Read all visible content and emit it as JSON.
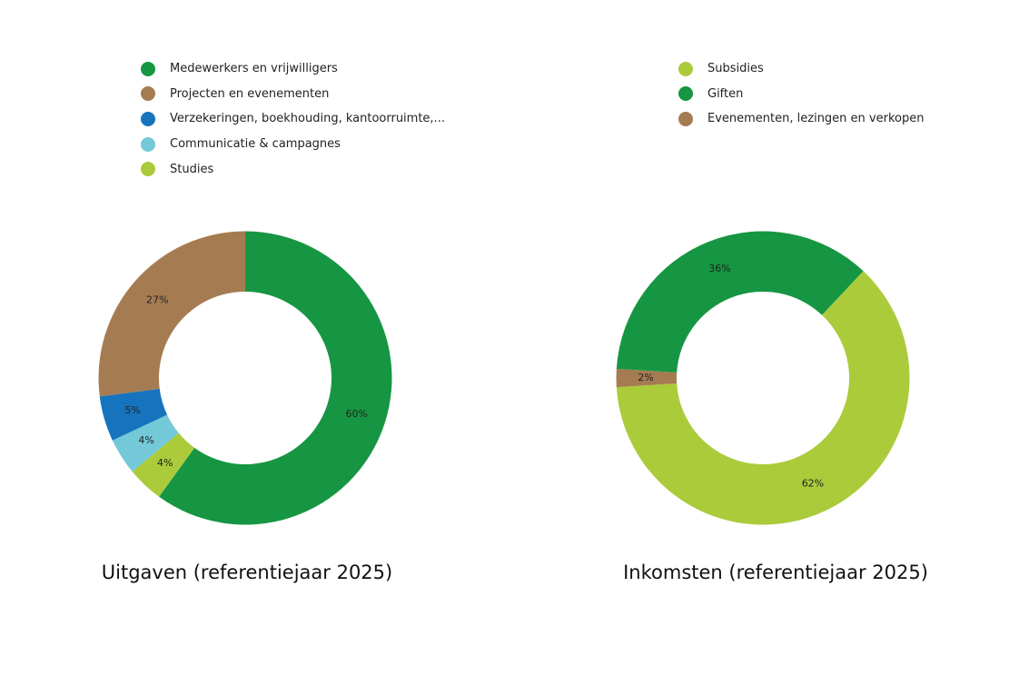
{
  "chart_data": [
    {
      "type": "pie",
      "title": "Uitgaven (referentiejaar 2025)",
      "categories": [
        "Medewerkers en vrijwilligers",
        "Projecten en evenementen",
        "Verzekeringen, boekhouding, kantoorruimte,...",
        "Communicatie & campagnes",
        "Studies"
      ],
      "values": [
        60,
        27,
        5,
        4,
        4
      ],
      "value_labels": [
        "60%",
        "27%",
        "5%",
        "4%",
        "4%"
      ],
      "colors": [
        "#169642",
        "#a57c52",
        "#1674be",
        "#74c9d9",
        "#abcb3b"
      ],
      "slice_order_clockwise_from_12": [
        0,
        4,
        3,
        2,
        1
      ],
      "legend_position": "top",
      "donut": true
    },
    {
      "type": "pie",
      "title": "Inkomsten (referentiejaar 2025)",
      "categories": [
        "Subsidies",
        "Giften",
        "Evenementen, lezingen en verkopen"
      ],
      "values": [
        62,
        36,
        2
      ],
      "value_labels": [
        "62%",
        "36%",
        "2%"
      ],
      "colors": [
        "#abcb3b",
        "#169642",
        "#a57c52"
      ],
      "slice_order_clockwise_from_12": [
        0,
        2,
        1
      ],
      "start_offset_percent": 12,
      "legend_position": "top",
      "donut": true
    }
  ]
}
